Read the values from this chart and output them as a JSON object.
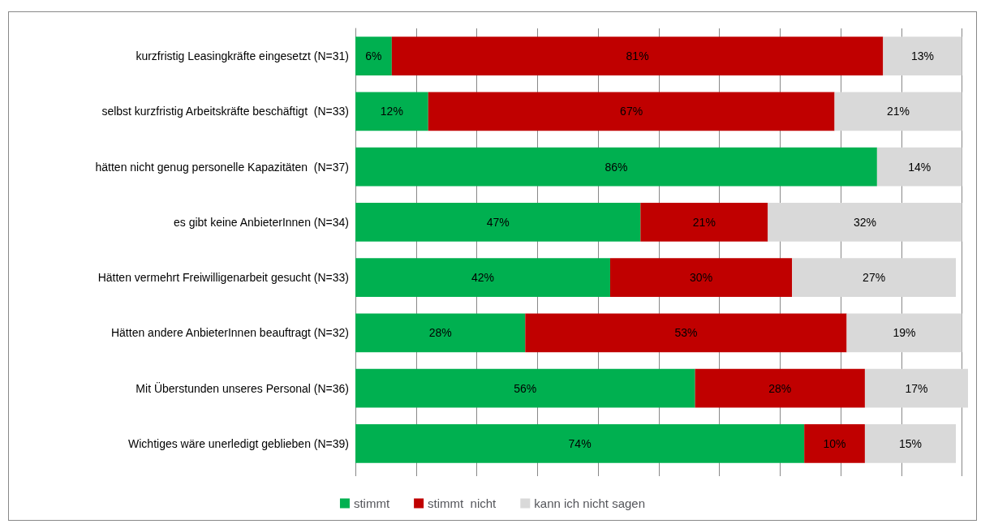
{
  "chart_data": {
    "type": "bar",
    "orientation": "horizontal",
    "stacked": true,
    "categories": [
      "kurzfristig Leasingkräfte eingesetzt (N=31)",
      "selbst kurzfristig Arbeitskräfte beschäftigt  (N=33)",
      "hätten nicht genug personelle Kapazitäten  (N=37)",
      "es gibt keine AnbieterInnen (N=34)",
      "Hätten vermehrt Freiwilligenarbeit gesucht (N=33)",
      "Hätten andere AnbieterInnen beauftragt (N=32)",
      "Mit Überstunden unseres Personal (N=36)",
      "Wichtiges wäre unerledigt geblieben (N=39)"
    ],
    "series": [
      {
        "name": "stimmt",
        "color": "#00b050",
        "values": [
          6,
          12,
          86,
          47,
          42,
          28,
          56,
          74
        ],
        "value_labels": [
          "6%",
          "12%",
          "86%",
          "47%",
          "42%",
          "28%",
          "56%",
          "74%"
        ]
      },
      {
        "name": "stimmt  nicht",
        "color": "#c00000",
        "values": [
          81,
          67,
          null,
          21,
          30,
          53,
          28,
          10
        ],
        "value_labels": [
          "81%",
          "67%",
          null,
          "21%",
          "30%",
          "53%",
          "28%",
          "10%"
        ]
      },
      {
        "name": "kann ich nicht sagen",
        "color": "#d9d9d9",
        "values": [
          13,
          21,
          14,
          32,
          27,
          19,
          17,
          15
        ],
        "value_labels": [
          "13%",
          "21%",
          "14%",
          "32%",
          "27%",
          "19%",
          "17%",
          "15%"
        ]
      }
    ],
    "xlim": [
      0,
      101
    ],
    "xticks": [
      {
        "value": 0,
        "label": null
      },
      {
        "value": 10,
        "label": null
      },
      {
        "value": 20,
        "label": null
      },
      {
        "value": 30,
        "label": null
      },
      {
        "value": 40,
        "label": null
      },
      {
        "value": 50,
        "label": null
      },
      {
        "value": 60,
        "label": null
      },
      {
        "value": 70,
        "label": null
      },
      {
        "value": 80,
        "label": null
      },
      {
        "value": 90,
        "label": null
      },
      {
        "value": 100,
        "label": null
      }
    ],
    "tick_labels": "y",
    "grid": "x",
    "legend": "bottom"
  }
}
